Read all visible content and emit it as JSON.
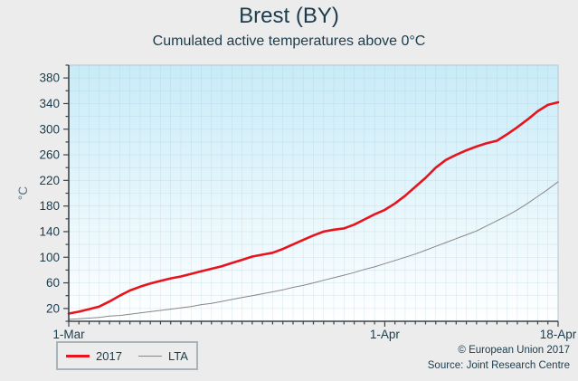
{
  "header": {
    "title": "Brest (BY)",
    "subtitle": "Cumulated active temperatures above 0°C"
  },
  "footer": {
    "copyright": "© European Union 2017",
    "source": "Source: Joint Research Centre"
  },
  "colors": {
    "page_background": "#ececec",
    "text": "#1b3c4d",
    "axis": "#3c4448",
    "y_axis_title": "#587585",
    "plot_border": "#b9c6cc",
    "grid": "#9fc6d4",
    "plot_gradient_top": "#c8ebf8",
    "plot_gradient_bottom": "#ffffff",
    "series_2017": "#e8131c",
    "series_lta": "#878787"
  },
  "chart_data": {
    "type": "line",
    "title": "Brest (BY)",
    "subtitle": "Cumulated active temperatures above 0°C",
    "xlabel": "",
    "ylabel": "°C",
    "ylim": [
      0,
      400
    ],
    "y_major_ticks": [
      20,
      60,
      100,
      140,
      180,
      220,
      260,
      300,
      340,
      380
    ],
    "y_minor_step": 20,
    "grid": true,
    "legend_position": "bottom-left",
    "x_tick_labels": [
      {
        "index": 0,
        "label": "1-Mar"
      },
      {
        "index": 31,
        "label": "1-Apr"
      },
      {
        "index": 48,
        "label": "18-Apr"
      }
    ],
    "categories": [
      "1-Mar",
      "2-Mar",
      "3-Mar",
      "4-Mar",
      "5-Mar",
      "6-Mar",
      "7-Mar",
      "8-Mar",
      "9-Mar",
      "10-Mar",
      "11-Mar",
      "12-Mar",
      "13-Mar",
      "14-Mar",
      "15-Mar",
      "16-Mar",
      "17-Mar",
      "18-Mar",
      "19-Mar",
      "20-Mar",
      "21-Mar",
      "22-Mar",
      "23-Mar",
      "24-Mar",
      "25-Mar",
      "26-Mar",
      "27-Mar",
      "28-Mar",
      "29-Mar",
      "30-Mar",
      "31-Mar",
      "1-Apr",
      "2-Apr",
      "3-Apr",
      "4-Apr",
      "5-Apr",
      "6-Apr",
      "7-Apr",
      "8-Apr",
      "9-Apr",
      "10-Apr",
      "11-Apr",
      "12-Apr",
      "13-Apr",
      "14-Apr",
      "15-Apr",
      "16-Apr",
      "17-Apr",
      "18-Apr"
    ],
    "series": [
      {
        "name": "2017",
        "color": "#e8131c",
        "stroke_width": 2.6,
        "values": [
          12,
          15,
          19,
          23,
          31,
          40,
          48,
          54,
          59,
          63,
          67,
          70,
          74,
          78,
          82,
          86,
          91,
          96,
          101,
          104,
          107,
          113,
          120,
          127,
          134,
          140,
          143,
          145,
          151,
          159,
          167,
          174,
          184,
          196,
          210,
          224,
          240,
          252,
          260,
          267,
          273,
          278,
          282,
          292,
          303,
          315,
          328,
          338,
          342
        ]
      },
      {
        "name": "LTA",
        "color": "#878787",
        "stroke_width": 1,
        "values": [
          3,
          4,
          5,
          6,
          8,
          9,
          11,
          13,
          15,
          17,
          19,
          21,
          23,
          26,
          28,
          31,
          34,
          37,
          40,
          43,
          46,
          49,
          53,
          56,
          60,
          64,
          68,
          72,
          76,
          81,
          85,
          90,
          95,
          100,
          105,
          111,
          117,
          123,
          129,
          135,
          141,
          149,
          157,
          165,
          174,
          184,
          195,
          206,
          218
        ]
      }
    ]
  }
}
